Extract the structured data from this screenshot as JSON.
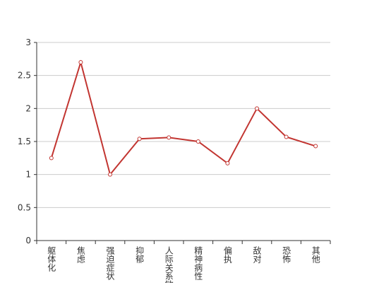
{
  "chart_data": {
    "type": "line",
    "categories": [
      "躯体化",
      "焦虑",
      "强迫症状",
      "抑郁",
      "人际关系敏感",
      "精神病性",
      "偏执",
      "敌对",
      "恐怖",
      "其他"
    ],
    "series": [
      {
        "name": "",
        "color": "#c23531",
        "values": [
          1.25,
          2.7,
          1.0,
          1.54,
          1.56,
          1.5,
          1.17,
          2.0,
          1.57,
          1.43
        ]
      }
    ],
    "ylim": [
      0,
      3
    ],
    "yticks": [
      0,
      0.5,
      1,
      1.5,
      2,
      2.5,
      3
    ],
    "grid": true
  }
}
